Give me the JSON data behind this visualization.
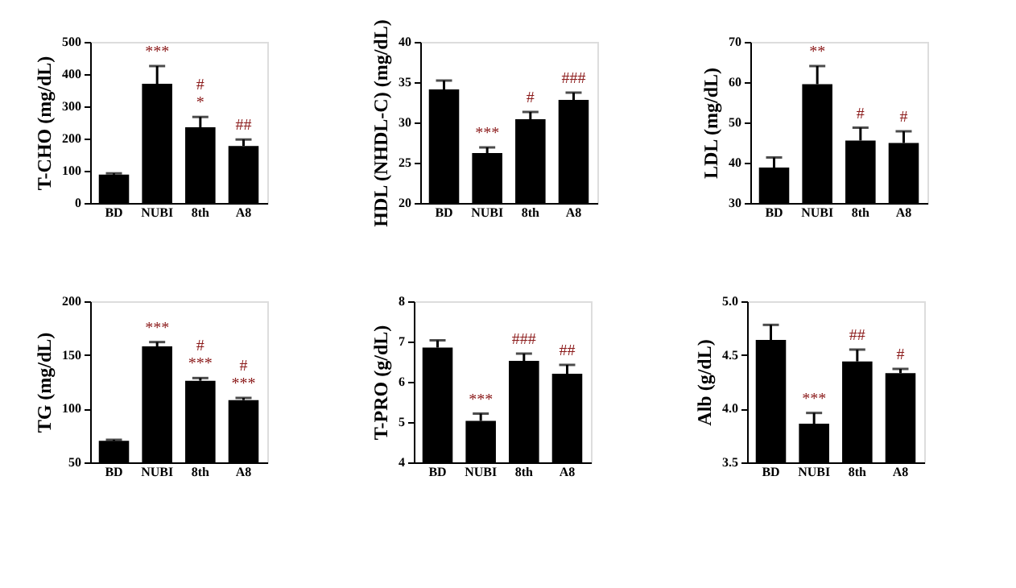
{
  "chart_data": [
    {
      "type": "bar",
      "ylabel": "T-CHO (mg/dL)",
      "categories": [
        "BD",
        "NUBI",
        "8th",
        "A8"
      ],
      "values": [
        88,
        370,
        235,
        177
      ],
      "errors": [
        [
          88,
          92
        ],
        [
          370,
          425
        ],
        [
          235,
          267
        ],
        [
          177,
          197
        ]
      ],
      "color": "#000000",
      "ylim": [
        0,
        500
      ],
      "yticks": [
        0,
        100,
        200,
        300,
        400,
        500
      ],
      "grid": false,
      "annotations": [
        {
          "text": "***",
          "x": "NUBI",
          "y": 425
        },
        {
          "text": "*",
          "x": "8th",
          "y": 267
        },
        {
          "text": "#",
          "x": "8th",
          "y": 267
        },
        {
          "text": "##",
          "x": "A8",
          "y": 197
        }
      ]
    },
    {
      "type": "bar",
      "ylabel": "HDL (NHDL-C) (mg/dL)",
      "categories": [
        "BD",
        "NUBI",
        "8th",
        "A8"
      ],
      "values": [
        34.1,
        26.2,
        30.4,
        32.8
      ],
      "errors": [
        [
          34.1,
          35.2
        ],
        [
          26.2,
          26.9
        ],
        [
          30.4,
          31.3
        ],
        [
          32.8,
          33.7
        ]
      ],
      "color": "#000000",
      "ylim": [
        20,
        40
      ],
      "yticks": [
        20,
        25,
        30,
        35,
        40
      ],
      "grid": false,
      "annotations": [
        {
          "text": "***",
          "x": "NUBI",
          "y": 26.9
        },
        {
          "text": "#",
          "x": "8th",
          "y": 31.3
        },
        {
          "text": "###",
          "x": "A8",
          "y": 33.7
        }
      ]
    },
    {
      "type": "bar",
      "ylabel": "LDL (mg/dL)",
      "categories": [
        "BD",
        "NUBI",
        "8th",
        "A8"
      ],
      "values": [
        38.8,
        59.5,
        45.5,
        44.9
      ],
      "errors": [
        [
          38.8,
          41.3
        ],
        [
          59.5,
          64
        ],
        [
          45.5,
          48.7
        ],
        [
          44.9,
          47.8
        ]
      ],
      "color": "#000000",
      "ylim": [
        30,
        70
      ],
      "yticks": [
        30,
        40,
        50,
        60,
        70
      ],
      "grid": false,
      "annotations": [
        {
          "text": "**",
          "x": "NUBI",
          "y": 64
        },
        {
          "text": "#",
          "x": "8th",
          "y": 48.7
        },
        {
          "text": "#",
          "x": "A8",
          "y": 47.8
        }
      ]
    },
    {
      "type": "bar",
      "ylabel": "TG (mg/dL)",
      "categories": [
        "BD",
        "NUBI",
        "8th",
        "A8"
      ],
      "values": [
        70,
        158,
        126,
        108
      ],
      "errors": [
        [
          70,
          71
        ],
        [
          158,
          162
        ],
        [
          126,
          128.5
        ],
        [
          108,
          110
        ]
      ],
      "color": "#000000",
      "ylim": [
        50,
        200
      ],
      "yticks": [
        50,
        100,
        150,
        200
      ],
      "grid": false,
      "annotations": [
        {
          "text": "***",
          "x": "NUBI",
          "y": 162
        },
        {
          "text": "***",
          "x": "8th",
          "y": 128.5
        },
        {
          "text": "#",
          "x": "8th",
          "y": 128.5
        },
        {
          "text": "***",
          "x": "A8",
          "y": 110
        },
        {
          "text": "#",
          "x": "A8",
          "y": 110
        }
      ]
    },
    {
      "type": "bar",
      "ylabel": "T-PRO (g/dL)",
      "categories": [
        "BD",
        "NUBI",
        "8th",
        "A8"
      ],
      "values": [
        6.85,
        5.03,
        6.52,
        6.2
      ],
      "errors": [
        [
          6.85,
          7.03
        ],
        [
          5.03,
          5.21
        ],
        [
          6.52,
          6.7
        ],
        [
          6.2,
          6.42
        ]
      ],
      "color": "#000000",
      "ylim": [
        4,
        8
      ],
      "yticks": [
        4,
        5,
        6,
        7,
        8
      ],
      "grid": false,
      "annotations": [
        {
          "text": "***",
          "x": "NUBI",
          "y": 5.21
        },
        {
          "text": "###",
          "x": "8th",
          "y": 6.7
        },
        {
          "text": "##",
          "x": "A8",
          "y": 6.42
        }
      ]
    },
    {
      "type": "bar",
      "ylabel": "Alb (g/dL)",
      "categories": [
        "BD",
        "NUBI",
        "8th",
        "A8"
      ],
      "values": [
        4.64,
        3.86,
        4.44,
        4.33
      ],
      "errors": [
        [
          4.64,
          4.78
        ],
        [
          3.86,
          3.96
        ],
        [
          4.44,
          4.55
        ],
        [
          4.33,
          4.37
        ]
      ],
      "color": "#000000",
      "ylim": [
        3.5,
        5.0
      ],
      "yticks": [
        3.5,
        {
          "value": 4,
          "label": "4.0"
        },
        4.5,
        {
          "value": 5,
          "label": "5.0"
        }
      ],
      "grid": false,
      "annotations": [
        {
          "text": "***",
          "x": "NUBI",
          "y": 3.96
        },
        {
          "text": "##",
          "x": "8th",
          "y": 4.55
        },
        {
          "text": "#",
          "x": "A8",
          "y": 4.37
        }
      ]
    }
  ]
}
